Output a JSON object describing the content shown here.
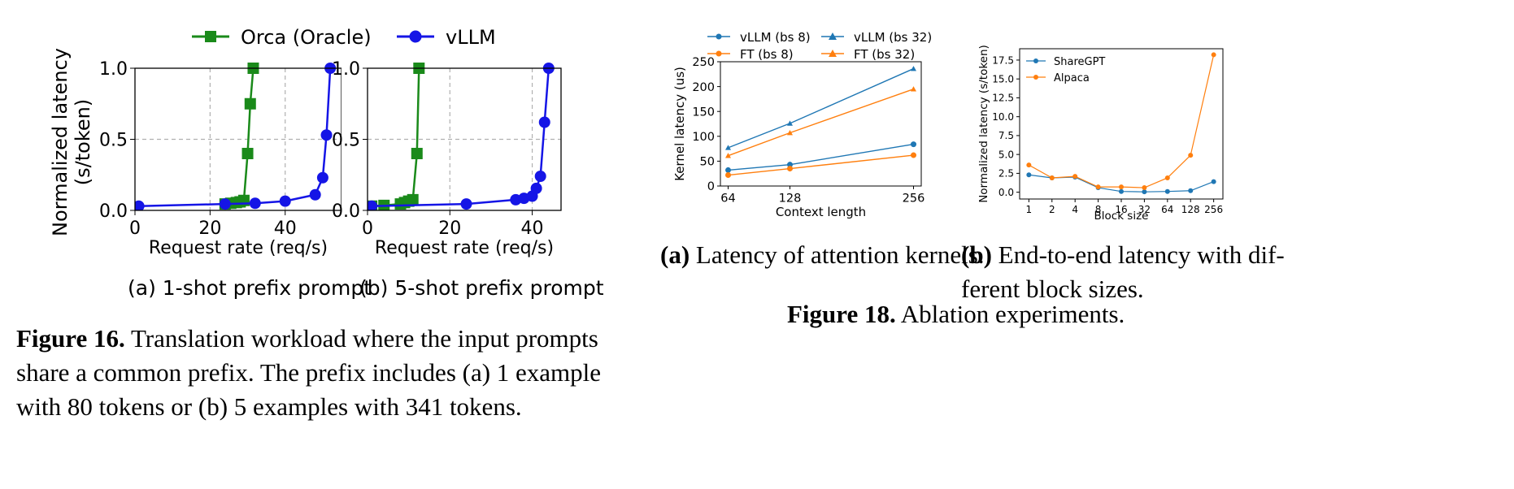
{
  "fig16": {
    "legend": [
      "Orca (Oracle)",
      "vLLM"
    ],
    "ylabel_line1": "Normalized latency",
    "ylabel_line2": "(s/token)",
    "xlabel": "Request rate (req/s)",
    "sub_a_caption": "(a) 1-shot prefix prompt",
    "sub_b_caption": "(b) 5-shot prefix prompt",
    "caption_label": "Figure 16.",
    "caption_line1": "Translation workload where the input prompts",
    "caption_line2": "share a common prefix. The prefix includes (a) 1 example",
    "caption_line3": "with 80 tokens or (b) 5 examples with 341 tokens."
  },
  "fig18": {
    "caption_a_label": "(a)",
    "caption_a_text": "Latency of attention kernels.",
    "caption_b_label": "(b)",
    "caption_b_line1": "End-to-end latency with dif-",
    "caption_b_line2": "ferent block sizes.",
    "caption_label": "Figure 18.",
    "caption_text": "Ablation experiments."
  },
  "colors": {
    "orca": "#1a8a1a",
    "vllm": "#1515e6",
    "mpl_blue": "#1f77b4",
    "mpl_orange": "#ff7f0e"
  },
  "chart_data": [
    {
      "id": "fig16a",
      "type": "line",
      "xlabel": "Request rate (req/s)",
      "ylabel": "Normalized latency (s/token)",
      "xlim": [
        0,
        55
      ],
      "ylim": [
        0,
        1.0
      ],
      "xticks": [
        0,
        20,
        40
      ],
      "yticks": [
        0.0,
        0.5,
        1.0
      ],
      "xtick_labels": [
        "0",
        "20",
        "40"
      ],
      "ytick_labels": [
        "0.0",
        "0.5",
        "1.0"
      ],
      "grid": "dashed",
      "series": [
        {
          "name": "Orca (Oracle)",
          "marker": "square",
          "color": "#1a8a1a",
          "x": [
            24,
            25.5,
            27,
            28,
            29,
            30,
            30.7,
            31.5
          ],
          "y": [
            0.045,
            0.05,
            0.055,
            0.06,
            0.07,
            0.4,
            0.75,
            1.0
          ]
        },
        {
          "name": "vLLM",
          "marker": "circle",
          "color": "#1515e6",
          "x": [
            1,
            24,
            32,
            40,
            48,
            50,
            51,
            52
          ],
          "y": [
            0.03,
            0.045,
            0.05,
            0.065,
            0.11,
            0.23,
            0.53,
            1.0
          ]
        }
      ]
    },
    {
      "id": "fig16b",
      "type": "line",
      "xlabel": "Request rate (req/s)",
      "ylabel": "",
      "xlim": [
        0,
        47
      ],
      "ylim": [
        0,
        1.0
      ],
      "xticks": [
        0,
        20,
        40
      ],
      "yticks": [
        0.0,
        0.5,
        1.0
      ],
      "xtick_labels": [
        "0",
        "20",
        "40"
      ],
      "ytick_labels": [
        "0.0",
        "0.5",
        "1.0"
      ],
      "grid": "dashed",
      "series": [
        {
          "name": "Orca (Oracle)",
          "marker": "square",
          "color": "#1a8a1a",
          "x": [
            1,
            4,
            8,
            9,
            10,
            11,
            12,
            12.5
          ],
          "y": [
            0.03,
            0.035,
            0.045,
            0.055,
            0.065,
            0.075,
            0.4,
            1.0
          ]
        },
        {
          "name": "vLLM",
          "marker": "circle",
          "color": "#1515e6",
          "x": [
            1,
            24,
            36,
            38,
            40,
            41,
            42,
            43,
            44
          ],
          "y": [
            0.03,
            0.045,
            0.075,
            0.085,
            0.1,
            0.155,
            0.24,
            0.62,
            1.0
          ]
        }
      ]
    },
    {
      "id": "fig18a",
      "type": "line",
      "xlabel": "Context length",
      "ylabel": "Kernel latency (us)",
      "xlim": [
        56,
        264
      ],
      "ylim": [
        0,
        250
      ],
      "xticks": [
        64,
        128,
        256
      ],
      "yticks": [
        0,
        50,
        100,
        150,
        200,
        250
      ],
      "xtick_labels": [
        "64",
        "128",
        "256"
      ],
      "ytick_labels": [
        "0",
        "50",
        "100",
        "150",
        "200",
        "250"
      ],
      "legend": [
        "vLLM (bs 8)",
        "vLLM (bs 32)",
        "FT (bs 8)",
        "FT (bs 32)"
      ],
      "series": [
        {
          "name": "vLLM (bs 8)",
          "marker": "circle",
          "color": "#1f77b4",
          "x": [
            64,
            128,
            256
          ],
          "y": [
            32,
            43,
            84
          ]
        },
        {
          "name": "vLLM (bs 32)",
          "marker": "triangle",
          "color": "#1f77b4",
          "x": [
            64,
            128,
            256
          ],
          "y": [
            77,
            126,
            236
          ]
        },
        {
          "name": "FT (bs 8)",
          "marker": "circle",
          "color": "#ff7f0e",
          "x": [
            64,
            128,
            256
          ],
          "y": [
            22,
            35,
            62
          ]
        },
        {
          "name": "FT (bs 32)",
          "marker": "triangle",
          "color": "#ff7f0e",
          "x": [
            64,
            128,
            256
          ],
          "y": [
            61,
            107,
            195
          ]
        }
      ]
    },
    {
      "id": "fig18b",
      "type": "line",
      "xlabel": "Block size",
      "ylabel": "Normalized latency (s/token)",
      "categories": [
        "1",
        "2",
        "4",
        "8",
        "16",
        "32",
        "64",
        "128",
        "256"
      ],
      "ylim": [
        -0.9,
        19
      ],
      "yticks": [
        0.0,
        2.5,
        5.0,
        7.5,
        10.0,
        12.5,
        15.0,
        17.5
      ],
      "ytick_labels": [
        "0.0",
        "2.5",
        "5.0",
        "7.5",
        "10.0",
        "12.5",
        "15.0",
        "17.5"
      ],
      "legend": [
        "ShareGPT",
        "Alpaca"
      ],
      "series": [
        {
          "name": "ShareGPT",
          "marker": "circle",
          "color": "#1f77b4",
          "values": [
            2.3,
            1.9,
            2.0,
            0.6,
            0.1,
            0.05,
            0.1,
            0.2,
            1.4
          ]
        },
        {
          "name": "Alpaca",
          "marker": "circle",
          "color": "#ff7f0e",
          "values": [
            3.6,
            1.9,
            2.1,
            0.7,
            0.7,
            0.6,
            1.9,
            4.9,
            18.2
          ]
        }
      ]
    }
  ]
}
